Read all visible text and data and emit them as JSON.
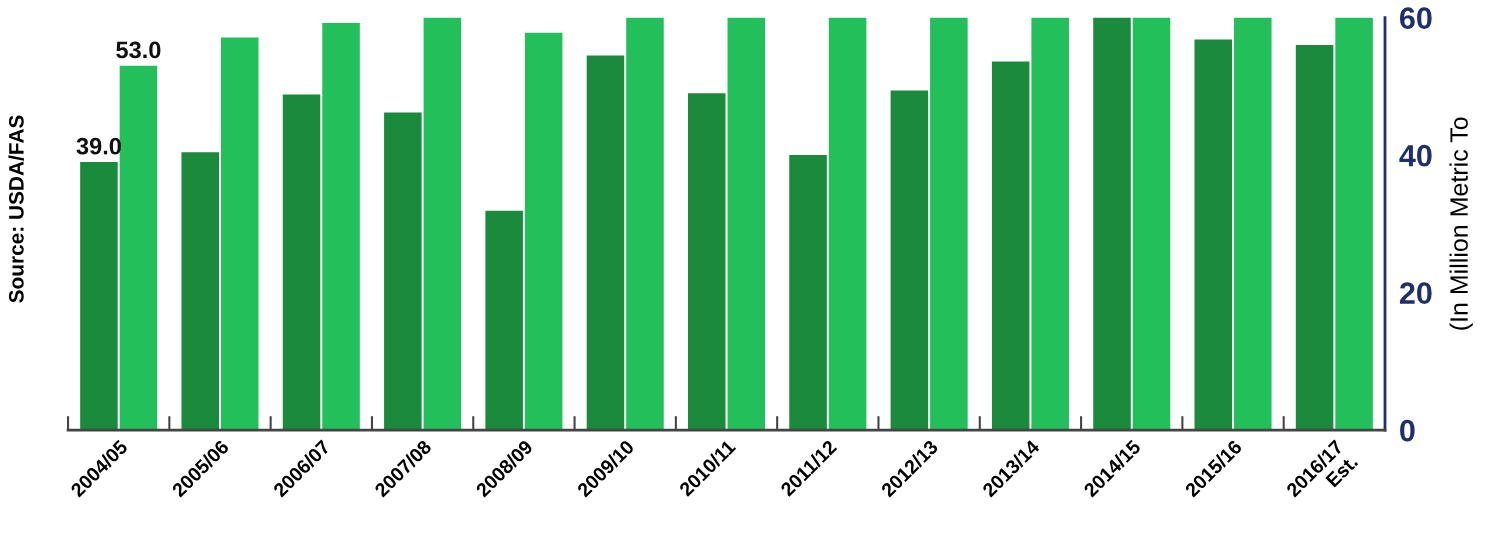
{
  "chart_data": {
    "type": "bar",
    "ylabel": "(In Million Metric To",
    "annotations": [
      "Source: USDA/FAS"
    ],
    "categories": [
      "2004/05",
      "2005/06",
      "2006/07",
      "2007/08",
      "2008/09",
      "2009/10",
      "2010/11",
      "2011/12",
      "2012/13",
      "2013/14",
      "2014/15",
      "2015/16",
      "2016/17\nEst."
    ],
    "series": [
      {
        "color": "#1a8a3c",
        "values": [
          39.0,
          40.4,
          48.8,
          46.2,
          31.9,
          54.5,
          49.0,
          40.0,
          49.4,
          53.6,
          60,
          56.8,
          56.0
        ],
        "value_labels": [
          "39.0",
          null,
          null,
          null,
          null,
          null,
          null,
          null,
          null,
          null,
          null,
          null,
          null
        ]
      },
      {
        "color": "#22bf5a",
        "values": [
          53.0,
          57.1,
          59.2,
          60,
          57.8,
          60,
          60,
          60,
          60,
          60,
          60,
          60,
          60
        ],
        "value_labels": [
          "53.0",
          null,
          null,
          null,
          null,
          null,
          null,
          null,
          null,
          null,
          null,
          null,
          null
        ]
      }
    ],
    "ylim": [
      0,
      60
    ],
    "yticks": [
      0,
      20,
      40,
      60
    ],
    "grid": false,
    "legend": false
  }
}
